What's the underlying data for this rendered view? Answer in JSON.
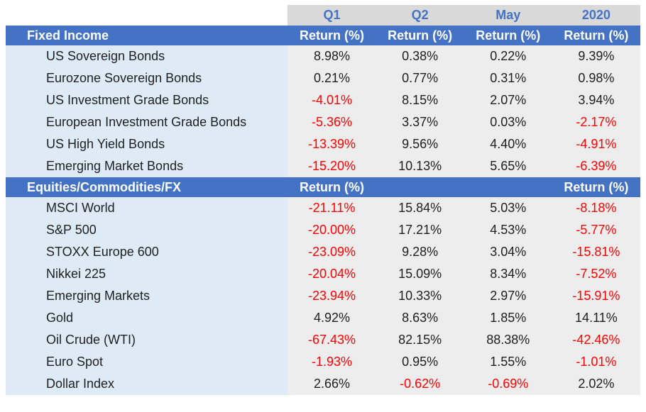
{
  "periods": [
    "Q1",
    "Q2",
    "May",
    "2020"
  ],
  "column_header": "Return (%)",
  "colors": {
    "header_blue": "#4472c4",
    "name_bg": "#deebf7",
    "value_bg": "#ededed",
    "negative": "#ff0000"
  },
  "sections": [
    {
      "title": "Fixed Income",
      "column_headers": [
        "Return (%)",
        "Return (%)",
        "Return (%)",
        "Return (%)"
      ],
      "rows": [
        {
          "name": "US Sovereign Bonds",
          "values": [
            "8.98%",
            "0.38%",
            "0.22%",
            "9.39%"
          ]
        },
        {
          "name": "Eurozone Sovereign Bonds",
          "values": [
            "0.21%",
            "0.77%",
            "0.31%",
            "0.98%"
          ]
        },
        {
          "name": "US Investment Grade Bonds",
          "values": [
            "-4.01%",
            "8.15%",
            "2.07%",
            "3.94%"
          ]
        },
        {
          "name": "European Investment Grade Bonds",
          "values": [
            "-5.36%",
            "3.37%",
            "0.03%",
            "-2.17%"
          ]
        },
        {
          "name": "US High Yield Bonds",
          "values": [
            "-13.39%",
            "9.56%",
            "4.40%",
            "-4.91%"
          ]
        },
        {
          "name": "Emerging Market Bonds",
          "values": [
            "-15.20%",
            "10.13%",
            "5.65%",
            "-6.39%"
          ]
        }
      ]
    },
    {
      "title": "Equities/Commodities/FX",
      "column_headers": [
        "Return (%)",
        "",
        "",
        "Return (%)"
      ],
      "rows": [
        {
          "name": "MSCI World",
          "values": [
            "-21.11%",
            "15.84%",
            "5.03%",
            "-8.18%"
          ]
        },
        {
          "name": "S&P 500",
          "values": [
            "-20.00%",
            "17.21%",
            "4.53%",
            "-5.77%"
          ]
        },
        {
          "name": "STOXX Europe 600",
          "values": [
            "-23.09%",
            "9.28%",
            "3.04%",
            "-15.81%"
          ]
        },
        {
          "name": "Nikkei 225",
          "values": [
            "-20.04%",
            "15.09%",
            "8.34%",
            "-7.52%"
          ]
        },
        {
          "name": "Emerging Markets",
          "values": [
            "-23.94%",
            "10.33%",
            "2.97%",
            "-15.91%"
          ]
        },
        {
          "name": "Gold",
          "values": [
            "4.92%",
            "8.63%",
            "1.85%",
            "14.11%"
          ]
        },
        {
          "name": "Oil Crude (WTI)",
          "values": [
            "-67.43%",
            "82.15%",
            "88.38%",
            "-42.46%"
          ]
        },
        {
          "name": "Euro Spot",
          "values": [
            "-1.93%",
            "0.95%",
            "1.55%",
            "-1.01%"
          ]
        },
        {
          "name": "Dollar Index",
          "values": [
            "2.66%",
            "-0.62%",
            "-0.69%",
            "2.02%"
          ]
        }
      ]
    }
  ]
}
